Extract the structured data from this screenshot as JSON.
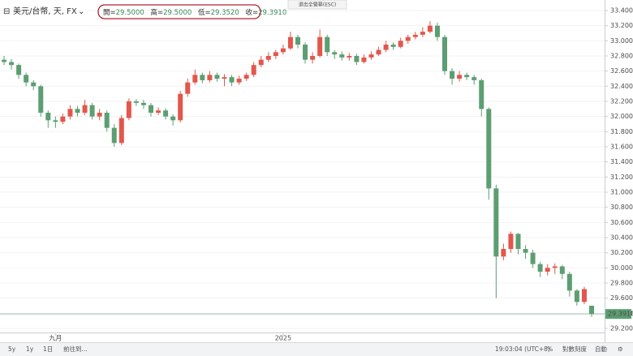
{
  "header": {
    "symbol": "美元/台幣, 天, FX",
    "exit_fullscreen": "退出全螢幕(ESC)",
    "ohlc": [
      {
        "label": "開=",
        "value": "29.5000"
      },
      {
        "label": "高=",
        "value": "29.5000"
      },
      {
        "label": "低=",
        "value": "29.3520"
      },
      {
        "label": "收=",
        "value": "29.3910"
      }
    ]
  },
  "toolbar": {
    "ranges": [
      "5y",
      "1y",
      "1日"
    ],
    "goto": "前往到...",
    "time": "19:03:04 (UTC+8)",
    "percent": "%",
    "log": "對數刻度",
    "auto": "自動"
  },
  "chart_data": {
    "type": "candlestick",
    "up_color": "#e2574c",
    "down_color": "#5c9e72",
    "grid": true,
    "ylim": [
      29.2,
      33.4
    ],
    "yticks": [
      {
        "value": 29.2,
        "label": "29.2000"
      },
      {
        "value": 29.4,
        "label": "29.4000"
      },
      {
        "value": 29.6,
        "label": "29.6000"
      },
      {
        "value": 29.8,
        "label": "29.8000"
      },
      {
        "value": 30.0,
        "label": "30.0000"
      },
      {
        "value": 30.2,
        "label": "30.2000"
      },
      {
        "value": 30.4,
        "label": "30.4000"
      },
      {
        "value": 30.6,
        "label": "30.6000"
      },
      {
        "value": 30.8,
        "label": "30.8000"
      },
      {
        "value": 31.0,
        "label": "31.0000"
      },
      {
        "value": 31.2,
        "label": "31.2000"
      },
      {
        "value": 31.4,
        "label": "31.4000"
      },
      {
        "value": 31.6,
        "label": "31.6000"
      },
      {
        "value": 31.8,
        "label": "31.8000"
      },
      {
        "value": 32.0,
        "label": "32.0000"
      },
      {
        "value": 32.2,
        "label": "32.2000"
      },
      {
        "value": 32.4,
        "label": "32.4000"
      },
      {
        "value": 32.6,
        "label": "32.6000"
      },
      {
        "value": 32.8,
        "label": "32.8000"
      },
      {
        "value": 33.0,
        "label": "33.0000"
      },
      {
        "value": 33.2,
        "label": "33.2000"
      },
      {
        "value": 33.4,
        "label": "33.4000"
      }
    ],
    "last_price": {
      "value": 29.391,
      "label": "29.3910",
      "color": "#5c9e72"
    },
    "categories": [
      null,
      null,
      null,
      null,
      null,
      null,
      null,
      "九月",
      null,
      null,
      null,
      null,
      null,
      null,
      null,
      null,
      null,
      null,
      null,
      null,
      null,
      null,
      null,
      null,
      null,
      null,
      null,
      null,
      null,
      null,
      null,
      null,
      null,
      null,
      null,
      null,
      null,
      null,
      "2025",
      null,
      null,
      null,
      null,
      null,
      null,
      null,
      null,
      null,
      null,
      null,
      null,
      null,
      null,
      null,
      null,
      null,
      null,
      null,
      null,
      null,
      null,
      null,
      null,
      null,
      null,
      null,
      null,
      null,
      null,
      null,
      null,
      null,
      null,
      null,
      null,
      null,
      null,
      null,
      null,
      null,
      null
    ],
    "open": [
      32.75,
      32.72,
      32.68,
      32.55,
      32.45,
      32.4,
      32.05,
      31.95,
      31.93,
      32.0,
      32.1,
      32.05,
      32.15,
      32.0,
      32.05,
      31.85,
      31.65,
      31.98,
      32.2,
      32.18,
      32.15,
      32.05,
      32.08,
      32.0,
      31.95,
      32.3,
      32.45,
      32.55,
      32.48,
      32.55,
      32.5,
      32.52,
      32.45,
      32.5,
      32.55,
      32.68,
      32.75,
      32.8,
      32.85,
      32.9,
      33.05,
      32.95,
      32.75,
      32.8,
      33.05,
      32.85,
      32.82,
      32.78,
      32.8,
      32.72,
      32.78,
      32.82,
      32.88,
      32.95,
      32.92,
      33.0,
      33.05,
      33.08,
      33.12,
      33.2,
      33.05,
      32.6,
      32.5,
      32.55,
      32.52,
      32.48,
      32.1,
      31.05,
      30.15,
      30.25,
      30.45,
      30.25,
      30.2,
      30.05,
      29.95,
      30.0,
      30.02,
      29.92,
      29.7,
      29.55,
      29.5
    ],
    "high": [
      32.8,
      32.76,
      32.7,
      32.58,
      32.48,
      32.42,
      32.08,
      32.0,
      32.04,
      32.15,
      32.14,
      32.22,
      32.18,
      32.1,
      32.08,
      31.9,
      32.02,
      32.24,
      32.23,
      32.22,
      32.18,
      32.12,
      32.11,
      32.03,
      32.34,
      32.5,
      32.62,
      32.58,
      32.6,
      32.58,
      32.56,
      32.55,
      32.54,
      32.58,
      32.72,
      32.8,
      32.85,
      32.88,
      32.95,
      33.12,
      33.08,
      32.98,
      32.85,
      33.15,
      33.08,
      32.88,
      32.86,
      32.84,
      32.83,
      32.82,
      32.86,
      32.92,
      33.0,
      32.98,
      33.04,
      33.08,
      33.12,
      33.18,
      33.26,
      33.24,
      33.08,
      32.64,
      32.6,
      32.58,
      32.55,
      32.5,
      32.12,
      31.1,
      30.32,
      30.48,
      30.46,
      30.3,
      30.24,
      30.08,
      30.05,
      30.06,
      30.04,
      29.95,
      29.72,
      29.75,
      29.5
    ],
    "low": [
      32.68,
      32.62,
      32.5,
      32.4,
      32.35,
      32.0,
      31.85,
      31.85,
      31.9,
      31.96,
      32.0,
      32.02,
      31.96,
      31.95,
      31.8,
      31.6,
      31.62,
      31.95,
      32.14,
      32.1,
      32.0,
      32.02,
      31.96,
      31.88,
      31.92,
      32.26,
      32.42,
      32.44,
      32.45,
      32.46,
      32.4,
      32.4,
      32.42,
      32.47,
      32.52,
      32.65,
      32.72,
      32.76,
      32.82,
      32.88,
      32.9,
      32.7,
      32.7,
      32.78,
      32.8,
      32.76,
      32.74,
      32.74,
      32.68,
      32.7,
      32.75,
      32.8,
      32.85,
      32.88,
      32.9,
      32.96,
      33.02,
      33.05,
      33.1,
      33.0,
      32.55,
      32.42,
      32.46,
      32.48,
      32.42,
      32.0,
      30.9,
      29.6,
      30.1,
      30.2,
      30.18,
      30.12,
      30.0,
      29.88,
      29.9,
      29.92,
      29.85,
      29.62,
      29.5,
      29.52,
      29.352
    ],
    "close": [
      32.72,
      32.68,
      32.55,
      32.45,
      32.4,
      32.05,
      31.95,
      31.93,
      32.0,
      32.1,
      32.05,
      32.15,
      32.0,
      32.05,
      31.85,
      31.65,
      31.98,
      32.2,
      32.18,
      32.15,
      32.05,
      32.08,
      32.0,
      31.95,
      32.3,
      32.45,
      32.55,
      32.48,
      32.55,
      32.5,
      32.52,
      32.45,
      32.5,
      32.55,
      32.68,
      32.75,
      32.8,
      32.85,
      32.9,
      33.05,
      32.95,
      32.75,
      32.8,
      33.05,
      32.85,
      32.82,
      32.78,
      32.8,
      32.72,
      32.78,
      32.82,
      32.88,
      32.95,
      32.92,
      33.0,
      33.05,
      33.08,
      33.12,
      33.2,
      33.05,
      32.6,
      32.5,
      32.55,
      32.52,
      32.48,
      32.1,
      31.05,
      30.15,
      30.25,
      30.45,
      30.25,
      30.2,
      30.05,
      29.95,
      30.0,
      30.02,
      29.92,
      29.7,
      29.55,
      29.72,
      29.391
    ]
  }
}
